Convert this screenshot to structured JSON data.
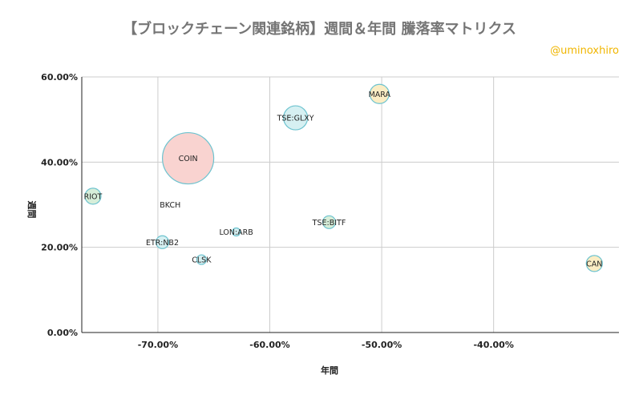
{
  "title": "【ブロックチェーン関連銘柄】週間＆年間 騰落率マトリクス",
  "handle": "@uminoxhiro",
  "chart_data": {
    "type": "scatter",
    "title": "【ブロックチェーン関連銘柄】週間＆年間 騰落率マトリクス",
    "xlabel": "年間",
    "ylabel": "週間",
    "xlim": [
      -76.8,
      -28.8
    ],
    "ylim": [
      0,
      60
    ],
    "x_ticks": [
      -70,
      -60,
      -50,
      -40
    ],
    "x_tick_labels": [
      "-70.00%",
      "-60.00%",
      "-50.00%",
      "-40.00%"
    ],
    "y_ticks": [
      0,
      20,
      40,
      60
    ],
    "y_tick_labels": [
      "0.00%",
      "20.00%",
      "40.00%",
      "60.00%"
    ],
    "grid": true,
    "points": [
      {
        "label": "COIN",
        "x": -67.3,
        "y": 40.9,
        "size": 32,
        "fill": "#f9d3d0",
        "stroke": "#6dc3cf"
      },
      {
        "label": "TSE:GLXY",
        "x": -57.7,
        "y": 50.4,
        "size": 15,
        "fill": "#d6f0f2",
        "stroke": "#6dc3cf"
      },
      {
        "label": "MARA",
        "x": -50.2,
        "y": 56.0,
        "size": 12,
        "fill": "#fbedc4",
        "stroke": "#6dc3cf"
      },
      {
        "label": "RIOT",
        "x": -75.8,
        "y": 32.0,
        "size": 10,
        "fill": "#d7eed9",
        "stroke": "#6dc3cf"
      },
      {
        "label": "BKCH",
        "x": -68.9,
        "y": 30.0,
        "size": 0,
        "fill": "#ffffff",
        "stroke": "#ffffff"
      },
      {
        "label": "TSE:BITF",
        "x": -54.7,
        "y": 25.9,
        "size": 8,
        "fill": "#d7eed9",
        "stroke": "#6dc3cf"
      },
      {
        "label": "LON:ARB",
        "x": -63.0,
        "y": 23.6,
        "size": 5,
        "fill": "#d6f0f2",
        "stroke": "#6dc3cf"
      },
      {
        "label": "ETR:NB2",
        "x": -69.6,
        "y": 21.2,
        "size": 8,
        "fill": "#d6f0f2",
        "stroke": "#6dc3cf"
      },
      {
        "label": "CLSK",
        "x": -66.1,
        "y": 17.1,
        "size": 6,
        "fill": "#d6f0f2",
        "stroke": "#6dc3cf"
      },
      {
        "label": "CAN",
        "x": -31.0,
        "y": 16.2,
        "size": 10,
        "fill": "#fbedc4",
        "stroke": "#6dc3cf"
      }
    ]
  }
}
